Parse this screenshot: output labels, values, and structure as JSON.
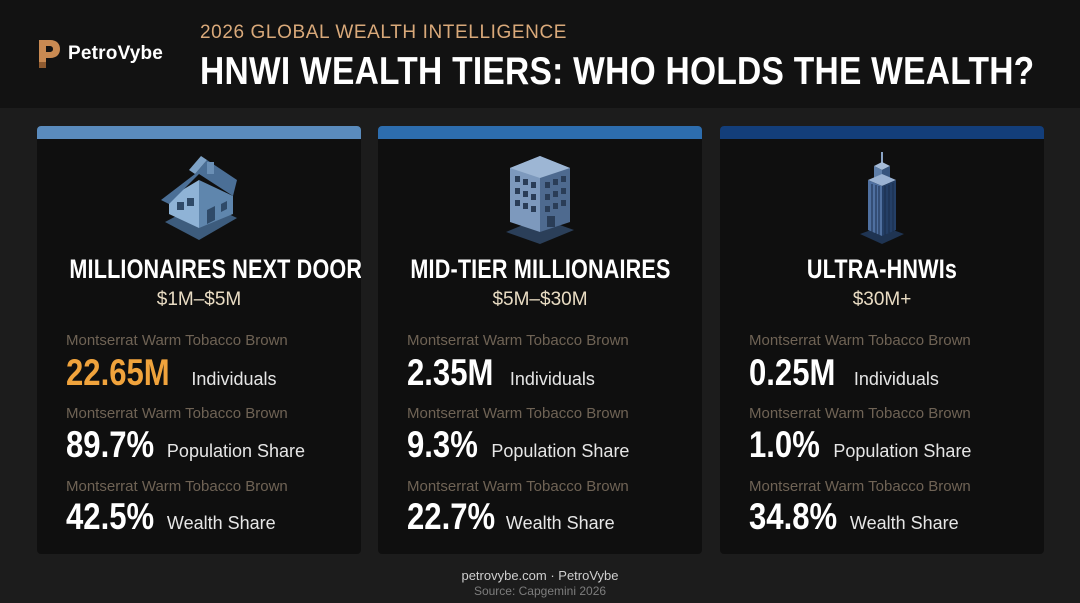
{
  "brand": {
    "name": "PetroVybe",
    "logo_letter": "P"
  },
  "header": {
    "kicker": "2026 GLOBAL WEALTH INTELLIGENCE",
    "title": "HNWI WEALTH TIERS: WHO HOLDS THE WEALTH?"
  },
  "tiers": [
    {
      "icon": "house-icon",
      "bar_color": "#5a8bbd",
      "title": "MILLIONAIRES NEXT DOOR",
      "range": "$1M–$5M",
      "stats": [
        {
          "caption": "Montserrat Warm Tobacco Brown",
          "value": "22.65M",
          "label": "Individuals"
        },
        {
          "caption": "Montserrat Warm Tobacco Brown",
          "value": "89.7%",
          "label": "Population Share"
        },
        {
          "caption": "Montserrat Warm Tobacco Brown",
          "value": "42.5%",
          "label": "Wealth Share"
        }
      ]
    },
    {
      "icon": "office-building-icon",
      "bar_color": "#2d6dae",
      "title": "MID-TIER MILLIONAIRES",
      "range": "$5M–$30M",
      "stats": [
        {
          "caption": "Montserrat Warm Tobacco Brown",
          "value": "2.35M",
          "label": "Individuals"
        },
        {
          "caption": "Montserrat Warm Tobacco Brown",
          "value": "9.3%",
          "label": "Population Share"
        },
        {
          "caption": "Montserrat Warm Tobacco Brown",
          "value": "22.7%",
          "label": "Wealth Share"
        }
      ]
    },
    {
      "icon": "skyscraper-icon",
      "bar_color": "#133e7a",
      "title": "ULTRA-HNWIs",
      "range": "$30M+",
      "stats": [
        {
          "caption": "Montserrat Warm Tobacco Brown",
          "value": "0.25M",
          "label": "Individuals"
        },
        {
          "caption": "Montserrat Warm Tobacco Brown",
          "value": "1.0%",
          "label": "Population Share"
        },
        {
          "caption": "Montserrat Warm Tobacco Brown",
          "value": "34.8%",
          "label": "Wealth Share"
        }
      ]
    }
  ],
  "colors": {
    "accent": "#f0a33c",
    "kicker": "#d9a97a",
    "caption": "#6f6355"
  },
  "footer": {
    "site": "petrovybe.com · PetroVybe",
    "source": "Source: Capgemini 2026"
  }
}
